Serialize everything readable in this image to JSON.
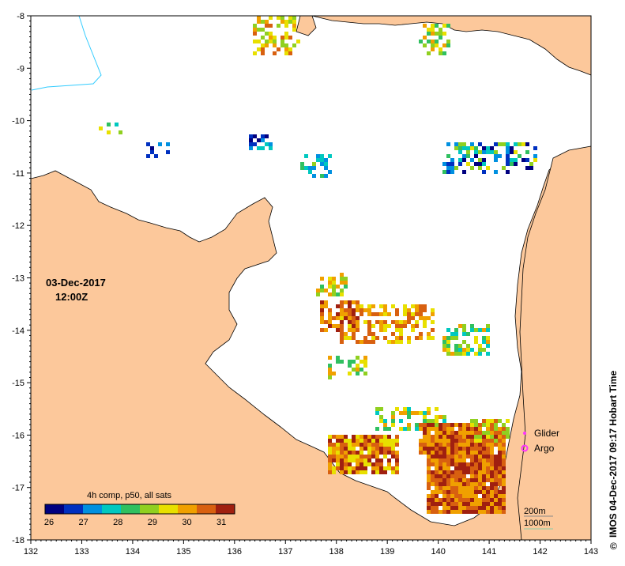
{
  "map": {
    "x_axis": {
      "ticks": [
        "132",
        "133",
        "134",
        "135",
        "136",
        "137",
        "138",
        "139",
        "140",
        "141",
        "142",
        "143"
      ]
    },
    "y_axis": {
      "ticks": [
        "-8",
        "-9",
        "-10",
        "-11",
        "-12",
        "-13",
        "-14",
        "-15",
        "-16",
        "-17",
        "-18"
      ]
    },
    "extent": {
      "lon": [
        132,
        143
      ],
      "lat": [
        -18,
        -8
      ]
    },
    "date": "03-Dec-2017",
    "time": "12:00Z",
    "credit": "IMOS 04-Dec-2017 09:17 Hobart Time",
    "copyright_symbol": "©",
    "colors": {
      "land": "#fcc89b",
      "sea": "#ffffff",
      "coast": "#000000",
      "river": "#33ccff"
    }
  },
  "legend": {
    "glider": "Glider",
    "argo": "Argo",
    "glider_color": "#ff33ff",
    "argo_color": "#ff33ff",
    "contour_200": "200m",
    "contour_1000": "1000m"
  },
  "colorbar": {
    "title": "4h comp, p50, all sats",
    "min": 26,
    "max": 31.5,
    "ticks": [
      "26",
      "27",
      "28",
      "29",
      "30",
      "31"
    ],
    "colormap": [
      "#000080",
      "#0030c0",
      "#0090e0",
      "#00c8c0",
      "#30c060",
      "#90d020",
      "#e8e000",
      "#f0a000",
      "#d86010",
      "#a02010"
    ]
  }
}
